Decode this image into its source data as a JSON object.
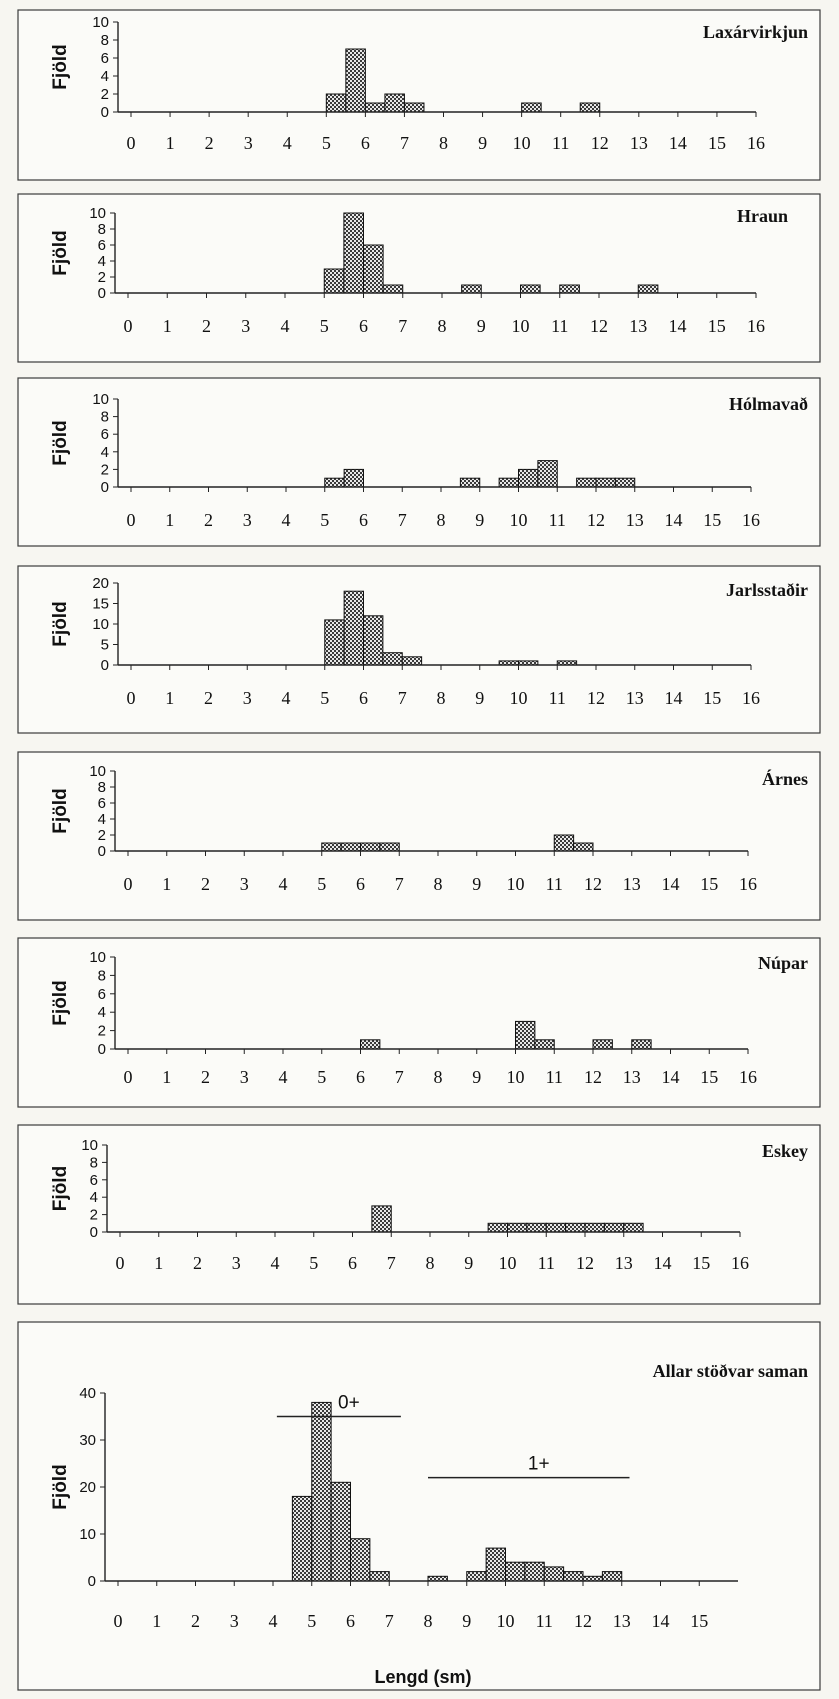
{
  "ylabel": "Fjöld",
  "xlabel": "Lengd (sm)",
  "chart_data": [
    {
      "type": "bar",
      "title": "Laxárvirkjun",
      "ylabel": "Fjöld",
      "yticks": [
        0,
        2,
        4,
        6,
        8,
        10
      ],
      "ylim": [
        0,
        10
      ],
      "xlim": [
        0,
        16
      ],
      "xticks": [
        0,
        1,
        2,
        3,
        4,
        5,
        6,
        7,
        8,
        9,
        10,
        11,
        12,
        13,
        14,
        15,
        16
      ],
      "bin_width": 0.5,
      "bars": [
        {
          "x": 5.0,
          "value": 2
        },
        {
          "x": 5.5,
          "value": 7
        },
        {
          "x": 6.0,
          "value": 1
        },
        {
          "x": 6.5,
          "value": 2
        },
        {
          "x": 7.0,
          "value": 1
        },
        {
          "x": 10.0,
          "value": 1
        },
        {
          "x": 11.5,
          "value": 1
        }
      ]
    },
    {
      "type": "bar",
      "title": "Hraun",
      "ylabel": "Fjöld",
      "yticks": [
        0,
        2,
        4,
        6,
        8,
        10
      ],
      "ylim": [
        0,
        10
      ],
      "xlim": [
        0,
        16
      ],
      "xticks": [
        0,
        1,
        2,
        3,
        4,
        5,
        6,
        7,
        8,
        9,
        10,
        11,
        12,
        13,
        14,
        15,
        16
      ],
      "bin_width": 0.5,
      "bars": [
        {
          "x": 5.0,
          "value": 3
        },
        {
          "x": 5.5,
          "value": 10
        },
        {
          "x": 6.0,
          "value": 6
        },
        {
          "x": 6.5,
          "value": 1
        },
        {
          "x": 8.5,
          "value": 1
        },
        {
          "x": 10.0,
          "value": 1
        },
        {
          "x": 11.0,
          "value": 1
        },
        {
          "x": 13.0,
          "value": 1
        }
      ]
    },
    {
      "type": "bar",
      "title": "Hólmavað",
      "ylabel": "Fjöld",
      "yticks": [
        0,
        2,
        4,
        6,
        8,
        10
      ],
      "ylim": [
        0,
        10
      ],
      "xlim": [
        0,
        16
      ],
      "xticks": [
        0,
        1,
        2,
        3,
        4,
        5,
        6,
        7,
        8,
        9,
        10,
        11,
        12,
        13,
        14,
        15,
        16
      ],
      "bin_width": 0.5,
      "bars": [
        {
          "x": 5.0,
          "value": 1
        },
        {
          "x": 5.5,
          "value": 2
        },
        {
          "x": 8.5,
          "value": 1
        },
        {
          "x": 9.5,
          "value": 1
        },
        {
          "x": 10.0,
          "value": 2
        },
        {
          "x": 10.5,
          "value": 3
        },
        {
          "x": 11.5,
          "value": 1
        },
        {
          "x": 12.0,
          "value": 1
        },
        {
          "x": 12.5,
          "value": 1
        }
      ]
    },
    {
      "type": "bar",
      "title": "Jarlsstaðir",
      "ylabel": "Fjöld",
      "yticks": [
        0,
        5,
        10,
        15,
        20
      ],
      "ylim": [
        0,
        20
      ],
      "xlim": [
        0,
        16
      ],
      "xticks": [
        0,
        1,
        2,
        3,
        4,
        5,
        6,
        7,
        8,
        9,
        10,
        11,
        12,
        13,
        14,
        15,
        16
      ],
      "bin_width": 0.5,
      "bars": [
        {
          "x": 5.0,
          "value": 11
        },
        {
          "x": 5.5,
          "value": 18
        },
        {
          "x": 6.0,
          "value": 12
        },
        {
          "x": 6.5,
          "value": 3
        },
        {
          "x": 7.0,
          "value": 2
        },
        {
          "x": 9.5,
          "value": 1
        },
        {
          "x": 10.0,
          "value": 1
        },
        {
          "x": 11.0,
          "value": 1
        }
      ]
    },
    {
      "type": "bar",
      "title": "Árnes",
      "ylabel": "Fjöld",
      "yticks": [
        0,
        2,
        4,
        6,
        8,
        10
      ],
      "ylim": [
        0,
        10
      ],
      "xlim": [
        0,
        16
      ],
      "xticks": [
        0,
        1,
        2,
        3,
        4,
        5,
        6,
        7,
        8,
        9,
        10,
        11,
        12,
        13,
        14,
        15,
        16
      ],
      "bin_width": 0.5,
      "bars": [
        {
          "x": 5.0,
          "value": 1
        },
        {
          "x": 5.5,
          "value": 1
        },
        {
          "x": 6.0,
          "value": 1
        },
        {
          "x": 6.5,
          "value": 1
        },
        {
          "x": 11.0,
          "value": 2
        },
        {
          "x": 11.5,
          "value": 1
        }
      ]
    },
    {
      "type": "bar",
      "title": "Núpar",
      "ylabel": "Fjöld",
      "yticks": [
        0,
        2,
        4,
        6,
        8,
        10
      ],
      "ylim": [
        0,
        10
      ],
      "xlim": [
        0,
        16
      ],
      "xticks": [
        0,
        1,
        2,
        3,
        4,
        5,
        6,
        7,
        8,
        9,
        10,
        11,
        12,
        13,
        14,
        15,
        16
      ],
      "bin_width": 0.5,
      "bars": [
        {
          "x": 6.0,
          "value": 1
        },
        {
          "x": 10.0,
          "value": 3
        },
        {
          "x": 10.5,
          "value": 1
        },
        {
          "x": 12.0,
          "value": 1
        },
        {
          "x": 13.0,
          "value": 1
        }
      ]
    },
    {
      "type": "bar",
      "title": "Eskey",
      "ylabel": "Fjöld",
      "yticks": [
        0,
        2,
        4,
        6,
        8,
        10
      ],
      "ylim": [
        0,
        10
      ],
      "xlim": [
        0,
        16
      ],
      "xticks": [
        0,
        1,
        2,
        3,
        4,
        5,
        6,
        7,
        8,
        9,
        10,
        11,
        12,
        13,
        14,
        15,
        16
      ],
      "bin_width": 0.5,
      "bars": [
        {
          "x": 6.5,
          "value": 3
        },
        {
          "x": 9.5,
          "value": 1
        },
        {
          "x": 10.0,
          "value": 1
        },
        {
          "x": 10.5,
          "value": 1
        },
        {
          "x": 11.0,
          "value": 1
        },
        {
          "x": 11.5,
          "value": 1
        },
        {
          "x": 12.0,
          "value": 1
        },
        {
          "x": 12.5,
          "value": 1
        },
        {
          "x": 13.0,
          "value": 1
        }
      ]
    },
    {
      "type": "bar",
      "title": "Allar stöðvar saman",
      "ylabel": "Fjöld",
      "xlabel": "Lengd (sm)",
      "yticks": [
        0,
        10,
        20,
        30,
        40
      ],
      "ylim": [
        0,
        40
      ],
      "xlim": [
        0,
        16
      ],
      "xticks": [
        0,
        1,
        2,
        3,
        4,
        5,
        6,
        7,
        8,
        9,
        10,
        11,
        12,
        13,
        14,
        15
      ],
      "bin_width": 0.5,
      "bars": [
        {
          "x": 4.5,
          "value": 18
        },
        {
          "x": 5.0,
          "value": 38
        },
        {
          "x": 5.5,
          "value": 21
        },
        {
          "x": 6.0,
          "value": 9
        },
        {
          "x": 6.5,
          "value": 2
        },
        {
          "x": 8.0,
          "value": 1
        },
        {
          "x": 9.0,
          "value": 2
        },
        {
          "x": 9.5,
          "value": 7
        },
        {
          "x": 10.0,
          "value": 4
        },
        {
          "x": 10.5,
          "value": 4
        },
        {
          "x": 11.0,
          "value": 3
        },
        {
          "x": 11.5,
          "value": 2
        },
        {
          "x": 12.0,
          "value": 1
        },
        {
          "x": 12.5,
          "value": 2
        }
      ],
      "annotations": [
        {
          "text": "0+",
          "x_from": 4.1,
          "x_to": 7.3,
          "y": 35
        },
        {
          "text": "1+",
          "x_from": 8.0,
          "x_to": 13.2,
          "y": 22
        }
      ]
    }
  ]
}
